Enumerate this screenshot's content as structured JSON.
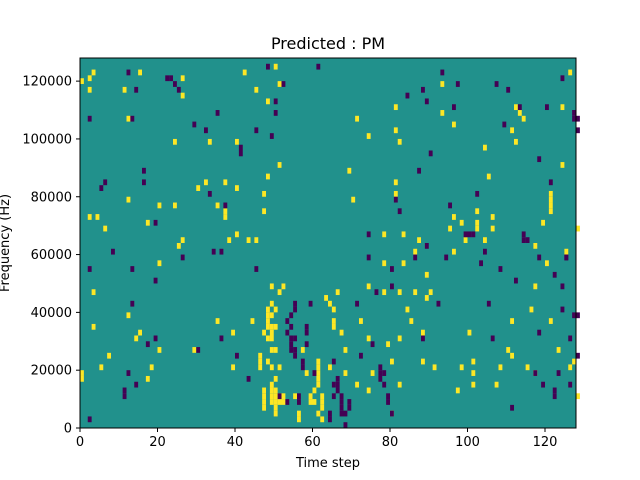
{
  "chart_data": {
    "type": "heatmap",
    "title": "Predicted : PM",
    "xlabel": "Time step",
    "ylabel": "Frequency (Hz)",
    "xlim": [
      0,
      128
    ],
    "ylim": [
      0,
      128000
    ],
    "x_ticks": [
      0,
      20,
      40,
      60,
      80,
      100,
      120
    ],
    "y_ticks": [
      0,
      20000,
      40000,
      60000,
      80000,
      100000,
      120000
    ],
    "n_rows": 64,
    "colors": {
      "background": "#21918c",
      "high": "#fde725",
      "low": "#440154"
    },
    "cells_high": [
      [
        0,
        119000
      ],
      [
        0,
        16000
      ],
      [
        0,
        18000
      ],
      [
        2,
        120000
      ],
      [
        2,
        116000
      ],
      [
        2,
        72000
      ],
      [
        3,
        122000
      ],
      [
        3,
        46000
      ],
      [
        3,
        34000
      ],
      [
        4,
        72000
      ],
      [
        5,
        20000
      ],
      [
        6,
        68000
      ],
      [
        7,
        24000
      ],
      [
        11,
        116000
      ],
      [
        12,
        106000
      ],
      [
        12,
        78000
      ],
      [
        12,
        38000
      ],
      [
        14,
        30000
      ],
      [
        15,
        32000
      ],
      [
        15,
        122000
      ],
      [
        17,
        70000
      ],
      [
        17,
        16000
      ],
      [
        18,
        20000
      ],
      [
        20,
        76000
      ],
      [
        20,
        26000
      ],
      [
        20,
        56000
      ],
      [
        24,
        98000
      ],
      [
        24,
        76000
      ],
      [
        25,
        62000
      ],
      [
        26,
        64000
      ],
      [
        26,
        120000
      ],
      [
        26,
        114000
      ],
      [
        29,
        26000
      ],
      [
        30,
        82000
      ],
      [
        32,
        84000
      ],
      [
        33,
        98000
      ],
      [
        35,
        76000
      ],
      [
        35,
        36000
      ],
      [
        37,
        84000
      ],
      [
        37,
        74000
      ],
      [
        37,
        72000
      ],
      [
        38,
        64000
      ],
      [
        39,
        32000
      ],
      [
        39,
        20000
      ],
      [
        40,
        82000
      ],
      [
        40,
        98000
      ],
      [
        40,
        66000
      ],
      [
        42,
        122000
      ],
      [
        43,
        64000
      ],
      [
        44,
        36000
      ],
      [
        45,
        116000
      ],
      [
        45,
        64000
      ],
      [
        46,
        24000
      ],
      [
        46,
        22000
      ],
      [
        47,
        12000
      ],
      [
        47,
        10000
      ],
      [
        47,
        8000
      ],
      [
        47,
        6000
      ],
      [
        47,
        80000
      ],
      [
        47,
        74000
      ],
      [
        47,
        32000
      ],
      [
        48,
        86000
      ],
      [
        48,
        34000
      ],
      [
        48,
        30000
      ],
      [
        48,
        36000
      ],
      [
        48,
        38000
      ],
      [
        48,
        40000
      ],
      [
        48,
        22000
      ],
      [
        48,
        112000
      ],
      [
        49,
        38000
      ],
      [
        49,
        48000
      ],
      [
        49,
        34000
      ],
      [
        49,
        32000
      ],
      [
        49,
        42000
      ],
      [
        49,
        30000
      ],
      [
        49,
        26000
      ],
      [
        49,
        20000
      ],
      [
        49,
        14000
      ],
      [
        49,
        12000
      ],
      [
        49,
        10000
      ],
      [
        49,
        8000
      ],
      [
        50,
        124000
      ],
      [
        50,
        34000
      ],
      [
        50,
        26000
      ],
      [
        50,
        8000
      ],
      [
        50,
        6000
      ],
      [
        50,
        4000
      ],
      [
        50,
        16000
      ],
      [
        50,
        12000
      ],
      [
        50,
        10000
      ],
      [
        51,
        118000
      ],
      [
        51,
        90000
      ],
      [
        51,
        46000
      ],
      [
        51,
        20000
      ],
      [
        51,
        10000
      ],
      [
        51,
        8000
      ],
      [
        52,
        8000
      ],
      [
        52,
        10000
      ],
      [
        55,
        10000
      ],
      [
        56,
        2000
      ],
      [
        56,
        4000
      ],
      [
        57,
        26000
      ],
      [
        58,
        18000
      ],
      [
        59,
        10000
      ],
      [
        59,
        8000
      ],
      [
        60,
        8000
      ],
      [
        60,
        12000
      ],
      [
        61,
        14000
      ],
      [
        61,
        20000
      ],
      [
        61,
        22000
      ],
      [
        61,
        18000
      ],
      [
        61,
        16000
      ],
      [
        61,
        4000
      ],
      [
        62,
        8000
      ],
      [
        62,
        2000
      ],
      [
        62,
        6000
      ],
      [
        62,
        10000
      ],
      [
        63,
        44000
      ],
      [
        64,
        42000
      ],
      [
        64,
        20000
      ],
      [
        65,
        40000
      ],
      [
        65,
        36000
      ],
      [
        65,
        34000
      ],
      [
        66,
        46000
      ],
      [
        67,
        32000
      ],
      [
        68,
        26000
      ],
      [
        68,
        18000
      ],
      [
        69,
        88000
      ],
      [
        70,
        78000
      ],
      [
        71,
        106000
      ],
      [
        71,
        14000
      ],
      [
        72,
        36000
      ],
      [
        74,
        100000
      ],
      [
        74,
        48000
      ],
      [
        74,
        30000
      ],
      [
        74,
        12000
      ],
      [
        75,
        18000
      ],
      [
        78,
        66000
      ],
      [
        78,
        56000
      ],
      [
        78,
        46000
      ],
      [
        79,
        28000
      ],
      [
        80,
        22000
      ],
      [
        80,
        4000
      ],
      [
        81,
        110000
      ],
      [
        81,
        102000
      ],
      [
        81,
        84000
      ],
      [
        81,
        80000
      ],
      [
        82,
        98000
      ],
      [
        82,
        46000
      ],
      [
        82,
        30000
      ],
      [
        82,
        14000
      ],
      [
        83,
        66000
      ],
      [
        83,
        56000
      ],
      [
        84,
        40000
      ],
      [
        85,
        36000
      ],
      [
        86,
        60000
      ],
      [
        86,
        46000
      ],
      [
        87,
        64000
      ],
      [
        88,
        32000
      ],
      [
        88,
        22000
      ],
      [
        89,
        52000
      ],
      [
        89,
        44000
      ],
      [
        90,
        46000
      ],
      [
        91,
        20000
      ],
      [
        93,
        118000
      ],
      [
        93,
        108000
      ],
      [
        95,
        68000
      ],
      [
        96,
        72000
      ],
      [
        96,
        60000
      ],
      [
        97,
        12000
      ],
      [
        98,
        20000
      ],
      [
        98,
        70000
      ],
      [
        99,
        64000
      ],
      [
        100,
        32000
      ],
      [
        101,
        18000
      ],
      [
        101,
        22000
      ],
      [
        101,
        14000
      ],
      [
        102,
        68000
      ],
      [
        102,
        74000
      ],
      [
        102,
        70000
      ],
      [
        104,
        96000
      ],
      [
        104,
        64000
      ],
      [
        105,
        86000
      ],
      [
        106,
        68000
      ],
      [
        106,
        72000
      ],
      [
        107,
        14000
      ],
      [
        108,
        20000
      ],
      [
        110,
        26000
      ],
      [
        111,
        102000
      ],
      [
        111,
        36000
      ],
      [
        111,
        24000
      ],
      [
        112,
        98000
      ],
      [
        112,
        110000
      ],
      [
        113,
        108000
      ],
      [
        114,
        106000
      ],
      [
        115,
        20000
      ],
      [
        116,
        40000
      ],
      [
        117,
        18000
      ],
      [
        117,
        48000
      ],
      [
        117,
        62000
      ],
      [
        119,
        70000
      ],
      [
        120,
        56000
      ],
      [
        121,
        76000
      ],
      [
        121,
        74000
      ],
      [
        121,
        78000
      ],
      [
        121,
        80000
      ],
      [
        121,
        36000
      ],
      [
        123,
        26000
      ],
      [
        124,
        90000
      ],
      [
        124,
        110000
      ],
      [
        125,
        60000
      ],
      [
        127,
        22000
      ],
      [
        128,
        68000
      ],
      [
        128,
        10000
      ],
      [
        126,
        20000
      ],
      [
        126,
        122000
      ],
      [
        96,
        104000
      ],
      [
        46,
        20000
      ],
      [
        50,
        40000
      ],
      [
        52,
        48000
      ]
    ],
    "cells_low": [
      [
        2,
        106000
      ],
      [
        2,
        54000
      ],
      [
        2,
        2000
      ],
      [
        5,
        82000
      ],
      [
        6,
        84000
      ],
      [
        8,
        60000
      ],
      [
        11,
        12000
      ],
      [
        11,
        10000
      ],
      [
        12,
        18000
      ],
      [
        12,
        122000
      ],
      [
        13,
        42000
      ],
      [
        13,
        54000
      ],
      [
        13,
        106000
      ],
      [
        14,
        116000
      ],
      [
        14,
        14000
      ],
      [
        16,
        88000
      ],
      [
        16,
        84000
      ],
      [
        17,
        28000
      ],
      [
        19,
        70000
      ],
      [
        19,
        50000
      ],
      [
        19,
        30000
      ],
      [
        22,
        120000
      ],
      [
        23,
        120000
      ],
      [
        24,
        118000
      ],
      [
        25,
        116000
      ],
      [
        26,
        58000
      ],
      [
        29,
        104000
      ],
      [
        30,
        26000
      ],
      [
        35,
        108000
      ],
      [
        36,
        60000
      ],
      [
        36,
        30000
      ],
      [
        40,
        24000
      ],
      [
        41,
        94000
      ],
      [
        41,
        96000
      ],
      [
        43,
        16000
      ],
      [
        45,
        102000
      ],
      [
        45,
        54000
      ],
      [
        48,
        124000
      ],
      [
        49,
        100000
      ],
      [
        50,
        112000
      ],
      [
        50,
        108000
      ],
      [
        51,
        10000
      ],
      [
        52,
        118000
      ],
      [
        53,
        8000
      ],
      [
        53,
        36000
      ],
      [
        53,
        32000
      ],
      [
        54,
        26000
      ],
      [
        54,
        28000
      ],
      [
        54,
        30000
      ],
      [
        54,
        34000
      ],
      [
        54,
        38000
      ],
      [
        55,
        30000
      ],
      [
        55,
        26000
      ],
      [
        55,
        24000
      ],
      [
        55,
        40000
      ],
      [
        55,
        42000
      ],
      [
        56,
        8000
      ],
      [
        56,
        10000
      ],
      [
        57,
        22000
      ],
      [
        57,
        20000
      ],
      [
        58,
        32000
      ],
      [
        58,
        34000
      ],
      [
        59,
        42000
      ],
      [
        61,
        124000
      ],
      [
        64,
        2000
      ],
      [
        64,
        4000
      ],
      [
        65,
        10000
      ],
      [
        65,
        14000
      ],
      [
        65,
        22000
      ],
      [
        66,
        16000
      ],
      [
        66,
        14000
      ],
      [
        66,
        12000
      ],
      [
        67,
        10000
      ],
      [
        67,
        8000
      ],
      [
        67,
        6000
      ],
      [
        67,
        4000
      ],
      [
        68,
        4000
      ],
      [
        68,
        0
      ],
      [
        69,
        8000
      ],
      [
        69,
        6000
      ],
      [
        71,
        42000
      ],
      [
        72,
        24000
      ],
      [
        74,
        66000
      ],
      [
        74,
        58000
      ],
      [
        75,
        28000
      ],
      [
        76,
        46000
      ],
      [
        77,
        16000
      ],
      [
        77,
        18000
      ],
      [
        77,
        20000
      ],
      [
        78,
        18000
      ],
      [
        78,
        14000
      ],
      [
        79,
        8000
      ],
      [
        79,
        10000
      ],
      [
        80,
        54000
      ],
      [
        80,
        48000
      ],
      [
        80,
        4000
      ],
      [
        81,
        78000
      ],
      [
        82,
        74000
      ],
      [
        84,
        114000
      ],
      [
        86,
        58000
      ],
      [
        87,
        88000
      ],
      [
        88,
        116000
      ],
      [
        88,
        30000
      ],
      [
        89,
        62000
      ],
      [
        89,
        112000
      ],
      [
        90,
        94000
      ],
      [
        92,
        42000
      ],
      [
        93,
        122000
      ],
      [
        94,
        58000
      ],
      [
        95,
        76000
      ],
      [
        96,
        110000
      ],
      [
        97,
        118000
      ],
      [
        99,
        66000
      ],
      [
        100,
        66000
      ],
      [
        101,
        66000
      ],
      [
        102,
        80000
      ],
      [
        103,
        56000
      ],
      [
        104,
        60000
      ],
      [
        105,
        42000
      ],
      [
        106,
        30000
      ],
      [
        107,
        118000
      ],
      [
        108,
        54000
      ],
      [
        109,
        104000
      ],
      [
        110,
        116000
      ],
      [
        111,
        6000
      ],
      [
        112,
        50000
      ],
      [
        113,
        110000
      ],
      [
        114,
        64000
      ],
      [
        114,
        66000
      ],
      [
        115,
        64000
      ],
      [
        117,
        18000
      ],
      [
        118,
        92000
      ],
      [
        118,
        58000
      ],
      [
        118,
        32000
      ],
      [
        119,
        14000
      ],
      [
        120,
        110000
      ],
      [
        121,
        84000
      ],
      [
        122,
        52000
      ],
      [
        123,
        18000
      ],
      [
        124,
        40000
      ],
      [
        124,
        48000
      ],
      [
        124,
        120000
      ],
      [
        125,
        58000
      ],
      [
        125,
        58000
      ],
      [
        126,
        14000
      ],
      [
        126,
        30000
      ],
      [
        127,
        38000
      ],
      [
        127,
        108000
      ],
      [
        127,
        106000
      ],
      [
        128,
        102000
      ],
      [
        128,
        38000
      ],
      [
        128,
        106000
      ],
      [
        122,
        10000
      ],
      [
        122,
        12000
      ],
      [
        128,
        24000
      ],
      [
        32,
        102000
      ],
      [
        33,
        80000
      ],
      [
        34,
        60000
      ],
      [
        37,
        76000
      ],
      [
        58,
        28000
      ],
      [
        60,
        18000
      ]
    ]
  }
}
